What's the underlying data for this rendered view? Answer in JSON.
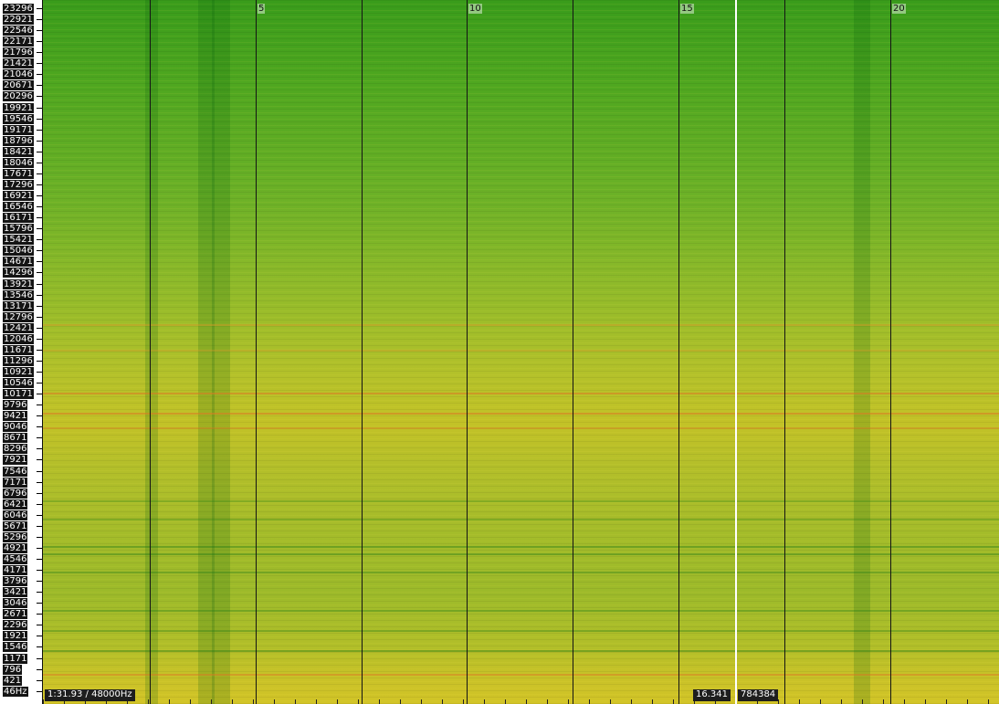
{
  "frequency_axis": {
    "labels": [
      "23296",
      "22921",
      "22546",
      "22171",
      "21796",
      "21421",
      "21046",
      "20671",
      "20296",
      "19921",
      "19546",
      "19171",
      "18796",
      "18421",
      "18046",
      "17671",
      "17296",
      "16921",
      "16546",
      "16171",
      "15796",
      "15421",
      "15046",
      "14671",
      "14296",
      "13921",
      "13546",
      "13171",
      "12796",
      "12421",
      "12046",
      "11671",
      "11296",
      "10921",
      "10546",
      "10171",
      "9796",
      "9421",
      "9046",
      "8671",
      "8296",
      "7921",
      "7546",
      "7171",
      "6796",
      "6421",
      "6046",
      "5671",
      "5296",
      "4921",
      "4546",
      "4171",
      "3796",
      "3421",
      "3046",
      "2671",
      "2296",
      "1921",
      "1546",
      "1171",
      "796",
      "421",
      "46Hz"
    ]
  },
  "time_axis": {
    "labels": [
      "5",
      "10",
      "15",
      "20"
    ]
  },
  "status": {
    "duration_samplerate": "1:31.93 / 48000Hz",
    "cursor_time": "16.341",
    "cursor_sample": "784384"
  },
  "colors": {
    "low_energy": "#399c1b",
    "mid_energy": "#a6bc2a",
    "high_energy": "#d2c427",
    "peak": "#d98a23",
    "playhead": "#ffffff",
    "gridline": "#141414"
  }
}
